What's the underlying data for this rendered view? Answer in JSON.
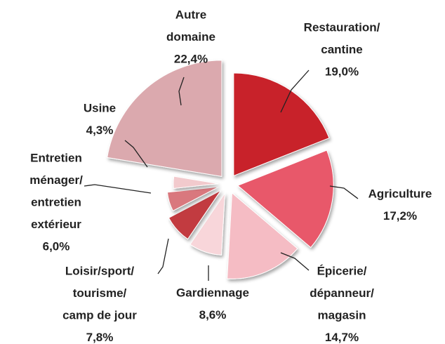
{
  "chart_data": {
    "type": "pie",
    "categories": [
      [
        "Restauration/",
        "cantine"
      ],
      [
        "Agriculture"
      ],
      [
        "Épicerie/",
        "dépanneur/",
        "magasin"
      ],
      [
        "Gardiennage"
      ],
      [
        "Loisir/sport/",
        "tourisme/",
        "camp de jour"
      ],
      [
        "Entretien",
        "ménager/",
        "entretien",
        "extérieur"
      ],
      [
        "Usine"
      ],
      [
        "Autre",
        "domaine"
      ]
    ],
    "values": [
      19.0,
      17.2,
      14.7,
      8.6,
      7.8,
      6.0,
      4.3,
      22.4
    ],
    "value_labels": [
      "19,0%",
      "17,2%",
      "14,7%",
      "8,6%",
      "7,8%",
      "6,0%",
      "4,3%",
      "22,4%"
    ],
    "colors": [
      "#c8202a",
      "#e8596a",
      "#f5bcc4",
      "#f8d6da",
      "#c23a40",
      "#d9787e",
      "#f2cacd",
      "#dba9ae"
    ]
  }
}
